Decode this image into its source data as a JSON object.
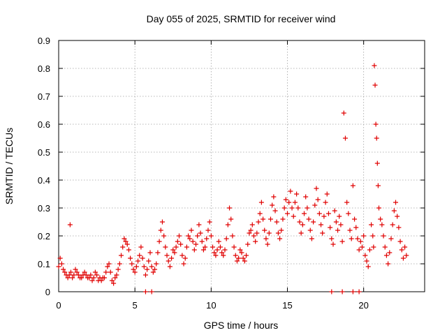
{
  "chart_data": {
    "type": "scatter",
    "title": "Day 055 of 2025, SRMTID for receiver wind",
    "xlabel": "GPS time / hours",
    "ylabel": "SRMTID / TECUs",
    "xlim": [
      0,
      24
    ],
    "ylim": [
      0,
      0.9
    ],
    "xticks": [
      0,
      5,
      10,
      15,
      20
    ],
    "yticks": [
      0,
      0.1,
      0.2,
      0.3,
      0.4,
      0.5,
      0.6,
      0.7,
      0.8,
      0.9
    ],
    "xtick_labels": [
      "0",
      "5",
      "10",
      "15",
      "20"
    ],
    "ytick_labels": [
      "0",
      "0.1",
      "0.2",
      "0.3",
      "0.4",
      "0.5",
      "0.6",
      "0.7",
      "0.8",
      "0.9"
    ],
    "grid": true,
    "marker": "plus",
    "marker_color": "#e00000",
    "series": [
      {
        "name": "SRMTID",
        "x": [
          0.0,
          0.1,
          0.2,
          0.3,
          0.4,
          0.5,
          0.6,
          0.7,
          0.75,
          0.8,
          0.9,
          1.0,
          1.1,
          1.2,
          1.3,
          1.4,
          1.5,
          1.6,
          1.7,
          1.8,
          1.9,
          2.0,
          2.1,
          2.2,
          2.3,
          2.4,
          2.5,
          2.6,
          2.7,
          2.8,
          2.9,
          3.0,
          3.1,
          3.2,
          3.3,
          3.4,
          3.5,
          3.6,
          3.7,
          3.8,
          3.9,
          4.0,
          4.1,
          4.2,
          4.3,
          4.4,
          4.5,
          4.6,
          4.7,
          4.8,
          4.9,
          5.0,
          5.1,
          5.2,
          5.3,
          5.4,
          5.5,
          5.6,
          5.7,
          5.8,
          5.9,
          6.0,
          6.1,
          6.2,
          6.3,
          6.4,
          6.5,
          6.6,
          6.7,
          6.8,
          6.9,
          7.0,
          7.1,
          7.2,
          7.3,
          7.4,
          7.5,
          7.6,
          7.7,
          7.8,
          7.9,
          8.0,
          8.1,
          8.2,
          8.3,
          8.4,
          8.5,
          8.6,
          8.7,
          8.8,
          8.9,
          9.0,
          9.1,
          9.2,
          9.3,
          9.4,
          9.5,
          9.6,
          9.7,
          9.8,
          9.9,
          10.0,
          10.1,
          10.2,
          10.3,
          10.4,
          10.5,
          10.6,
          10.7,
          10.8,
          10.9,
          11.0,
          11.1,
          11.2,
          11.3,
          11.4,
          11.5,
          11.6,
          11.7,
          11.8,
          11.9,
          12.0,
          12.1,
          12.2,
          12.3,
          12.4,
          12.5,
          12.6,
          12.7,
          12.8,
          12.9,
          13.0,
          13.1,
          13.2,
          13.3,
          13.4,
          13.5,
          13.6,
          13.7,
          13.8,
          13.9,
          14.0,
          14.1,
          14.2,
          14.3,
          14.4,
          14.5,
          14.6,
          14.7,
          14.8,
          14.9,
          15.0,
          15.1,
          15.2,
          15.3,
          15.4,
          15.5,
          15.6,
          15.7,
          15.8,
          15.9,
          16.0,
          16.1,
          16.2,
          16.3,
          16.4,
          16.5,
          16.6,
          16.7,
          16.8,
          16.9,
          17.0,
          17.1,
          17.2,
          17.3,
          17.4,
          17.5,
          17.6,
          17.7,
          17.8,
          17.9,
          18.0,
          18.1,
          18.2,
          18.3,
          18.4,
          18.5,
          18.6,
          18.7,
          18.8,
          18.9,
          19.0,
          19.1,
          19.2,
          19.3,
          19.4,
          19.5,
          19.6,
          19.7,
          19.8,
          19.9,
          20.0,
          20.1,
          20.2,
          20.3,
          20.4,
          20.5,
          20.6,
          20.65,
          20.7,
          20.75,
          20.8,
          20.85,
          20.9,
          20.95,
          21.0,
          21.1,
          21.2,
          21.3,
          21.4,
          21.5,
          21.6,
          21.7,
          21.8,
          21.9,
          22.0,
          22.1,
          22.2,
          22.3,
          22.4,
          22.5,
          22.6,
          22.7,
          22.8,
          5.7,
          6.1,
          17.9,
          18.6,
          19.3,
          19.7
        ],
        "y": [
          0.09,
          0.12,
          0.1,
          0.08,
          0.07,
          0.06,
          0.05,
          0.06,
          0.24,
          0.07,
          0.05,
          0.06,
          0.08,
          0.07,
          0.06,
          0.05,
          0.05,
          0.06,
          0.07,
          0.06,
          0.05,
          0.05,
          0.06,
          0.04,
          0.05,
          0.07,
          0.06,
          0.04,
          0.05,
          0.04,
          0.05,
          0.05,
          0.07,
          0.09,
          0.1,
          0.07,
          0.04,
          0.03,
          0.05,
          0.06,
          0.08,
          0.1,
          0.13,
          0.16,
          0.19,
          0.18,
          0.17,
          0.15,
          0.12,
          0.1,
          0.08,
          0.07,
          0.09,
          0.11,
          0.13,
          0.16,
          0.12,
          0.09,
          0.06,
          0.08,
          0.11,
          0.14,
          0.09,
          0.07,
          0.08,
          0.1,
          0.14,
          0.18,
          0.22,
          0.25,
          0.2,
          0.16,
          0.13,
          0.11,
          0.09,
          0.12,
          0.15,
          0.14,
          0.16,
          0.18,
          0.2,
          0.17,
          0.13,
          0.1,
          0.12,
          0.16,
          0.2,
          0.19,
          0.22,
          0.18,
          0.15,
          0.17,
          0.2,
          0.24,
          0.21,
          0.18,
          0.15,
          0.16,
          0.19,
          0.22,
          0.25,
          0.2,
          0.16,
          0.14,
          0.13,
          0.15,
          0.18,
          0.16,
          0.14,
          0.13,
          0.15,
          0.19,
          0.24,
          0.3,
          0.26,
          0.2,
          0.16,
          0.13,
          0.11,
          0.12,
          0.15,
          0.14,
          0.12,
          0.11,
          0.13,
          0.17,
          0.21,
          0.22,
          0.24,
          0.2,
          0.18,
          0.21,
          0.25,
          0.28,
          0.32,
          0.26,
          0.22,
          0.19,
          0.17,
          0.21,
          0.26,
          0.31,
          0.34,
          0.29,
          0.25,
          0.21,
          0.19,
          0.22,
          0.26,
          0.3,
          0.33,
          0.28,
          0.32,
          0.36,
          0.3,
          0.27,
          0.32,
          0.35,
          0.3,
          0.25,
          0.21,
          0.24,
          0.28,
          0.34,
          0.3,
          0.26,
          0.22,
          0.19,
          0.25,
          0.31,
          0.37,
          0.33,
          0.28,
          0.24,
          0.21,
          0.27,
          0.32,
          0.35,
          0.28,
          0.23,
          0.19,
          0.17,
          0.29,
          0.25,
          0.22,
          0.27,
          0.24,
          0.18,
          0.64,
          0.55,
          0.32,
          0.28,
          0.22,
          0.19,
          0.38,
          0.26,
          0.23,
          0.19,
          0.15,
          0.18,
          0.16,
          0.2,
          0.13,
          0.11,
          0.09,
          0.15,
          0.24,
          0.2,
          0.16,
          0.81,
          0.74,
          0.6,
          0.55,
          0.46,
          0.38,
          0.3,
          0.26,
          0.24,
          0.2,
          0.16,
          0.13,
          0.1,
          0.14,
          0.19,
          0.24,
          0.29,
          0.32,
          0.27,
          0.23,
          0.18,
          0.15,
          0.12,
          0.16,
          0.13,
          0,
          0,
          0,
          0,
          0,
          0
        ]
      }
    ]
  }
}
